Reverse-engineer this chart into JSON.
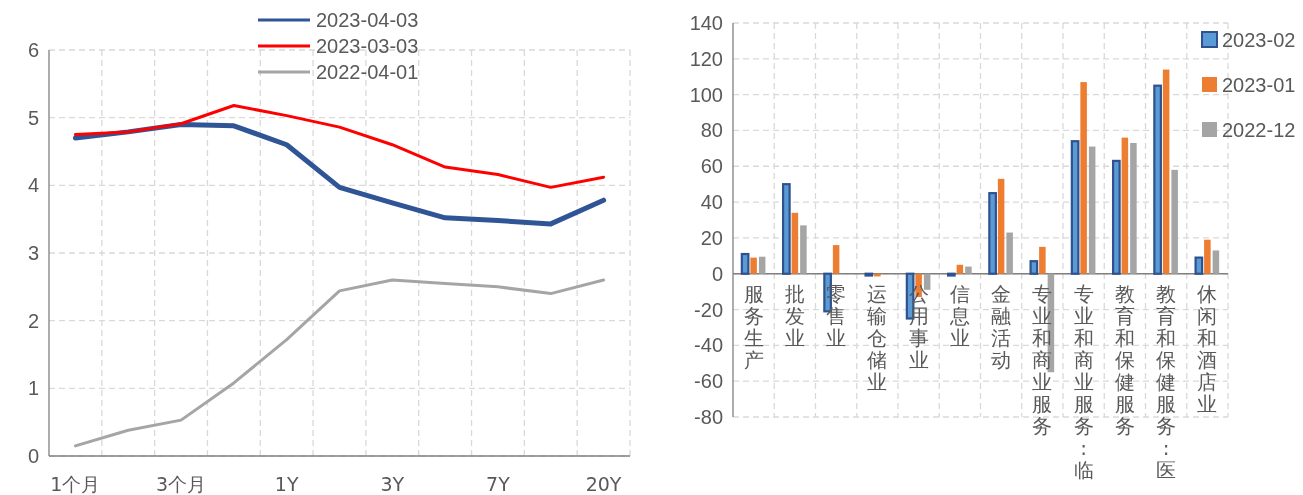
{
  "chart_data": [
    {
      "type": "line",
      "categories": [
        "1个月",
        null,
        "3个月",
        null,
        "1Y",
        null,
        "3Y",
        null,
        "7Y",
        null,
        "20Y"
      ],
      "ylim": [
        0,
        6
      ],
      "yticks": [
        0,
        1,
        2,
        3,
        4,
        5,
        6
      ],
      "grid": true,
      "legend": "top",
      "line_style": "solid",
      "marker": "none",
      "series": [
        {
          "name": "2023-04-03",
          "color": "#2f5597",
          "values": [
            4.7,
            4.79,
            4.9,
            4.88,
            4.6,
            3.97,
            3.74,
            3.52,
            3.48,
            3.43,
            3.78
          ]
        },
        {
          "name": "2023-03-03",
          "color": "#ff0000",
          "values": [
            4.75,
            4.79,
            4.91,
            5.18,
            5.03,
            4.86,
            4.6,
            4.27,
            4.16,
            3.97,
            4.12
          ]
        },
        {
          "name": "2022-04-01",
          "color": "#a5a5a5",
          "values": [
            0.15,
            0.38,
            0.53,
            1.08,
            1.72,
            2.44,
            2.6,
            2.55,
            2.5,
            2.4,
            2.6
          ]
        }
      ]
    },
    {
      "type": "bar",
      "categories": [
        "服务生产",
        "批发业",
        "零售业",
        "运输仓储业",
        "公用事业",
        "信息业",
        "金融活动",
        "专业和商业服务",
        "专业和商业服务:临",
        "教育和保健服务",
        "教育和保健服务:医",
        "休闲和酒店业"
      ],
      "ylim": [
        -80,
        140
      ],
      "yticks": [
        -80,
        -60,
        -40,
        -20,
        0,
        20,
        40,
        60,
        80,
        100,
        120,
        140
      ],
      "grid": true,
      "legend": "right",
      "series": [
        {
          "name": "2023-02",
          "color": "#5b9bd5",
          "values": [
            11,
            50,
            -21,
            -1,
            -25,
            -1,
            45,
            7,
            74,
            63,
            105,
            9
          ]
        },
        {
          "name": "2023-01",
          "color": "#ed7d31",
          "values": [
            9,
            34,
            16,
            -1.5,
            -13,
            5,
            53,
            15,
            107,
            76,
            114,
            19
          ]
        },
        {
          "name": "2022-12",
          "color": "#a5a5a5",
          "values": [
            9.5,
            27,
            0,
            0,
            -9,
            4,
            23,
            -55,
            71,
            73,
            58,
            13
          ]
        }
      ]
    }
  ]
}
